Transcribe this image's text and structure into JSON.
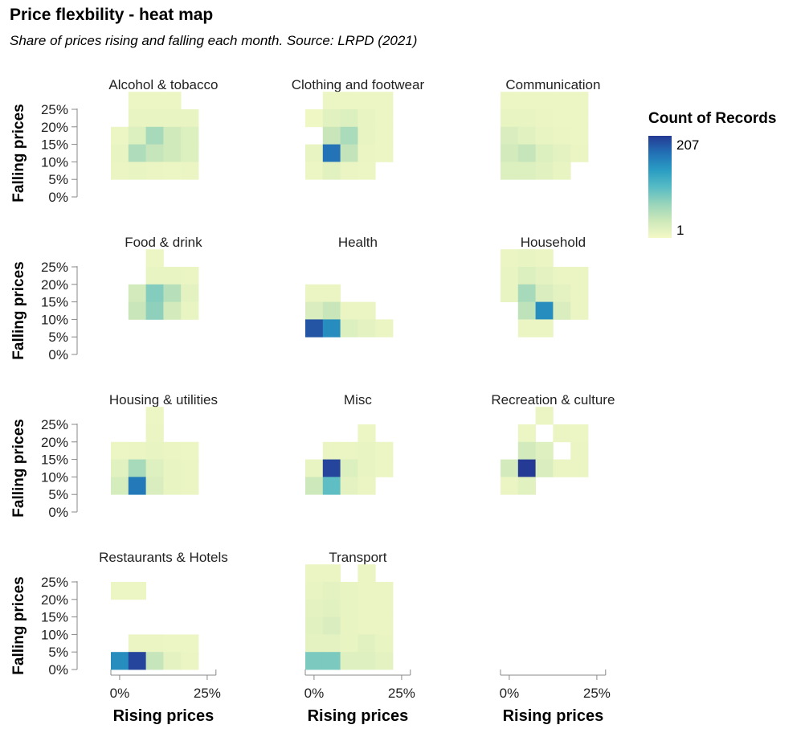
{
  "title": "Price flexbility - heat map",
  "subtitle": "Share of prices rising and falling each month. Source: LRPD (2021)",
  "chart_data": {
    "type": "heatmap",
    "x_label": "Rising prices",
    "y_label": "Falling prices",
    "x_ticks": [
      "0%",
      "25%"
    ],
    "y_ticks": [
      "0%",
      "5%",
      "10%",
      "15%",
      "20%",
      "25%"
    ],
    "bin_starts": [
      0,
      5,
      10,
      15,
      20,
      25
    ],
    "legend": {
      "title": "Count of Records",
      "max": 207,
      "min": 1,
      "max_label": "207",
      "min_label": "1"
    },
    "color_scale": [
      "#f4f9c6",
      "#cde8ba",
      "#98d4bb",
      "#56bbc4",
      "#2a9cc3",
      "#2270b5",
      "#253a94"
    ],
    "panels": [
      {
        "name": "Alcohol & tobacco",
        "cells": [
          [
            5,
            25,
            8
          ],
          [
            10,
            25,
            8
          ],
          [
            15,
            25,
            8
          ],
          [
            5,
            20,
            12
          ],
          [
            10,
            20,
            12
          ],
          [
            15,
            20,
            12
          ],
          [
            20,
            20,
            12
          ],
          [
            0,
            15,
            8
          ],
          [
            5,
            15,
            22
          ],
          [
            10,
            15,
            60
          ],
          [
            15,
            15,
            32
          ],
          [
            20,
            15,
            22
          ],
          [
            0,
            10,
            12
          ],
          [
            5,
            10,
            55
          ],
          [
            10,
            10,
            40
          ],
          [
            15,
            10,
            32
          ],
          [
            20,
            10,
            22
          ],
          [
            0,
            5,
            10
          ],
          [
            5,
            5,
            12
          ],
          [
            10,
            5,
            10
          ],
          [
            15,
            5,
            8
          ],
          [
            20,
            5,
            10
          ]
        ]
      },
      {
        "name": "Clothing and footwear",
        "cells": [
          [
            5,
            25,
            8
          ],
          [
            10,
            25,
            8
          ],
          [
            15,
            25,
            8
          ],
          [
            20,
            25,
            8
          ],
          [
            0,
            20,
            5
          ],
          [
            5,
            20,
            18
          ],
          [
            10,
            20,
            22
          ],
          [
            15,
            20,
            12
          ],
          [
            20,
            20,
            8
          ],
          [
            5,
            15,
            38
          ],
          [
            10,
            15,
            58
          ],
          [
            15,
            15,
            12
          ],
          [
            20,
            15,
            8
          ],
          [
            0,
            10,
            12
          ],
          [
            5,
            10,
            170
          ],
          [
            10,
            10,
            42
          ],
          [
            15,
            10,
            10
          ],
          [
            20,
            10,
            8
          ],
          [
            0,
            5,
            8
          ],
          [
            5,
            5,
            18
          ],
          [
            10,
            5,
            10
          ],
          [
            15,
            5,
            8
          ]
        ]
      },
      {
        "name": "Communication",
        "cells": [
          [
            0,
            25,
            8
          ],
          [
            5,
            25,
            8
          ],
          [
            10,
            25,
            8
          ],
          [
            15,
            25,
            8
          ],
          [
            20,
            25,
            8
          ],
          [
            0,
            20,
            12
          ],
          [
            5,
            20,
            12
          ],
          [
            10,
            20,
            10
          ],
          [
            15,
            20,
            8
          ],
          [
            20,
            20,
            8
          ],
          [
            0,
            15,
            25
          ],
          [
            5,
            15,
            18
          ],
          [
            10,
            15,
            12
          ],
          [
            15,
            15,
            10
          ],
          [
            20,
            15,
            8
          ],
          [
            0,
            10,
            30
          ],
          [
            5,
            10,
            40
          ],
          [
            10,
            10,
            22
          ],
          [
            15,
            10,
            15
          ],
          [
            20,
            10,
            10
          ],
          [
            0,
            5,
            22
          ],
          [
            5,
            5,
            22
          ],
          [
            10,
            5,
            18
          ],
          [
            15,
            5,
            12
          ]
        ]
      },
      {
        "name": "Food & drink",
        "cells": [
          [
            10,
            25,
            8
          ],
          [
            10,
            20,
            12
          ],
          [
            15,
            20,
            12
          ],
          [
            20,
            20,
            10
          ],
          [
            5,
            15,
            30
          ],
          [
            10,
            15,
            80
          ],
          [
            15,
            15,
            50
          ],
          [
            20,
            15,
            15
          ],
          [
            5,
            10,
            38
          ],
          [
            10,
            10,
            75
          ],
          [
            15,
            10,
            30
          ],
          [
            20,
            10,
            12
          ]
        ]
      },
      {
        "name": "Health",
        "cells": [
          [
            0,
            15,
            10
          ],
          [
            5,
            15,
            10
          ],
          [
            0,
            10,
            25
          ],
          [
            5,
            10,
            38
          ],
          [
            10,
            10,
            10
          ],
          [
            15,
            10,
            10
          ],
          [
            0,
            5,
            190
          ],
          [
            5,
            5,
            150
          ],
          [
            10,
            5,
            22
          ],
          [
            15,
            5,
            15
          ],
          [
            20,
            5,
            10
          ]
        ]
      },
      {
        "name": "Household",
        "cells": [
          [
            0,
            25,
            10
          ],
          [
            5,
            25,
            12
          ],
          [
            10,
            25,
            10
          ],
          [
            0,
            20,
            12
          ],
          [
            5,
            20,
            22
          ],
          [
            10,
            20,
            15
          ],
          [
            15,
            20,
            10
          ],
          [
            20,
            20,
            10
          ],
          [
            0,
            15,
            12
          ],
          [
            5,
            15,
            60
          ],
          [
            10,
            15,
            25
          ],
          [
            15,
            15,
            15
          ],
          [
            20,
            15,
            10
          ],
          [
            5,
            10,
            45
          ],
          [
            10,
            10,
            150
          ],
          [
            15,
            10,
            25
          ],
          [
            20,
            10,
            10
          ],
          [
            5,
            5,
            10
          ],
          [
            10,
            5,
            10
          ]
        ]
      },
      {
        "name": "Housing & utilities",
        "cells": [
          [
            10,
            25,
            8
          ],
          [
            10,
            20,
            10
          ],
          [
            0,
            15,
            8
          ],
          [
            5,
            15,
            10
          ],
          [
            10,
            15,
            12
          ],
          [
            15,
            15,
            10
          ],
          [
            20,
            15,
            8
          ],
          [
            0,
            10,
            18
          ],
          [
            5,
            10,
            60
          ],
          [
            10,
            10,
            20
          ],
          [
            15,
            10,
            12
          ],
          [
            20,
            10,
            10
          ],
          [
            0,
            5,
            28
          ],
          [
            5,
            5,
            165
          ],
          [
            10,
            5,
            25
          ],
          [
            15,
            5,
            12
          ],
          [
            20,
            5,
            10
          ]
        ]
      },
      {
        "name": "Misc",
        "cells": [
          [
            15,
            20,
            8
          ],
          [
            5,
            15,
            10
          ],
          [
            10,
            15,
            10
          ],
          [
            15,
            15,
            12
          ],
          [
            20,
            15,
            8
          ],
          [
            0,
            10,
            12
          ],
          [
            5,
            10,
            200
          ],
          [
            10,
            10,
            22
          ],
          [
            15,
            10,
            12
          ],
          [
            20,
            10,
            8
          ],
          [
            0,
            5,
            35
          ],
          [
            5,
            5,
            100
          ],
          [
            10,
            5,
            15
          ],
          [
            15,
            5,
            10
          ]
        ]
      },
      {
        "name": "Recreation & culture",
        "cells": [
          [
            10,
            25,
            10
          ],
          [
            5,
            20,
            8
          ],
          [
            15,
            20,
            10
          ],
          [
            20,
            20,
            8
          ],
          [
            5,
            15,
            30
          ],
          [
            10,
            15,
            20
          ],
          [
            20,
            15,
            10
          ],
          [
            0,
            10,
            30
          ],
          [
            5,
            10,
            207
          ],
          [
            10,
            10,
            25
          ],
          [
            15,
            10,
            10
          ],
          [
            20,
            10,
            10
          ],
          [
            0,
            5,
            10
          ],
          [
            5,
            5,
            18
          ]
        ]
      },
      {
        "name": "Restaurants & Hotels",
        "cells": [
          [
            0,
            20,
            8
          ],
          [
            5,
            20,
            8
          ],
          [
            5,
            5,
            10
          ],
          [
            10,
            5,
            10
          ],
          [
            15,
            5,
            8
          ],
          [
            20,
            5,
            8
          ],
          [
            0,
            0,
            150
          ],
          [
            5,
            0,
            200
          ],
          [
            10,
            0,
            40
          ],
          [
            15,
            0,
            15
          ],
          [
            20,
            0,
            10
          ]
        ]
      },
      {
        "name": "Transport",
        "cells": [
          [
            0,
            25,
            10
          ],
          [
            5,
            25,
            10
          ],
          [
            15,
            25,
            10
          ],
          [
            0,
            20,
            12
          ],
          [
            5,
            20,
            15
          ],
          [
            10,
            20,
            12
          ],
          [
            15,
            20,
            10
          ],
          [
            20,
            20,
            10
          ],
          [
            0,
            15,
            15
          ],
          [
            5,
            15,
            18
          ],
          [
            10,
            15,
            12
          ],
          [
            15,
            15,
            10
          ],
          [
            20,
            15,
            10
          ],
          [
            0,
            10,
            18
          ],
          [
            5,
            10,
            25
          ],
          [
            10,
            10,
            12
          ],
          [
            15,
            10,
            10
          ],
          [
            20,
            10,
            10
          ],
          [
            0,
            5,
            15
          ],
          [
            5,
            5,
            15
          ],
          [
            10,
            5,
            12
          ],
          [
            15,
            5,
            18
          ],
          [
            20,
            5,
            12
          ],
          [
            0,
            0,
            85
          ],
          [
            5,
            0,
            85
          ],
          [
            10,
            0,
            20
          ],
          [
            15,
            0,
            20
          ],
          [
            20,
            0,
            15
          ]
        ]
      }
    ]
  }
}
